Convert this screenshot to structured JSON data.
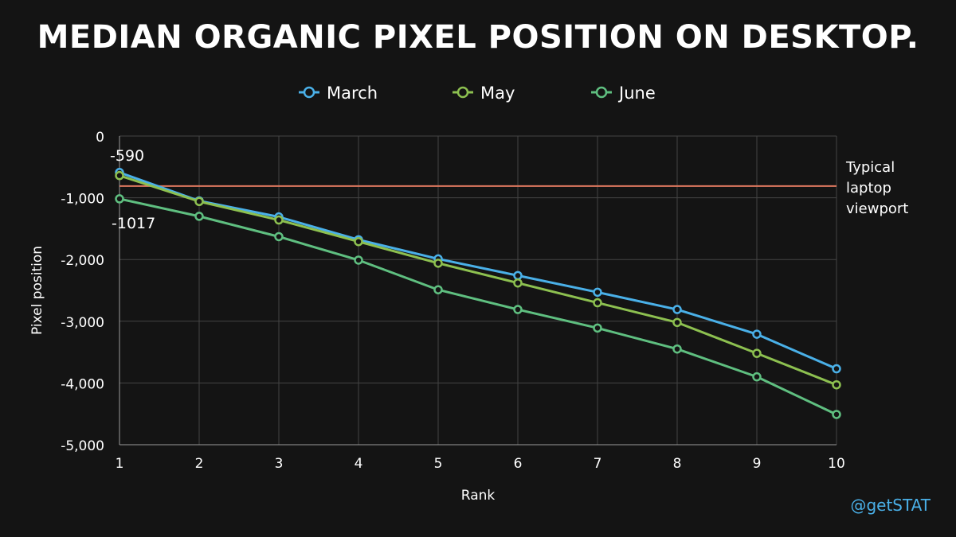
{
  "chart_data": {
    "type": "line",
    "title": "MEDIAN ORGANIC PIXEL POSITION ON DESKTOP.",
    "xlabel": "Rank",
    "ylabel": "Pixel position",
    "x": [
      1,
      2,
      3,
      4,
      5,
      6,
      7,
      8,
      9,
      10
    ],
    "ylim": [
      -5000,
      0
    ],
    "yticks": [
      0,
      -1000,
      -2000,
      -3000,
      -4000,
      -5000
    ],
    "ytick_labels": [
      "0",
      "-1,000",
      "-2,000",
      "-3,000",
      "-4,000",
      "-5,000"
    ],
    "grid": true,
    "legend_position": "top-center",
    "series": [
      {
        "name": "March",
        "color": "#4ab0e8",
        "values": [
          -590,
          -1050,
          -1310,
          -1680,
          -1990,
          -2260,
          -2530,
          -2810,
          -3210,
          -3770
        ]
      },
      {
        "name": "May",
        "color": "#8dc050",
        "values": [
          -640,
          -1060,
          -1360,
          -1710,
          -2060,
          -2380,
          -2700,
          -3020,
          -3520,
          -4030
        ]
      },
      {
        "name": "June",
        "color": "#5fbf80",
        "values": [
          -1017,
          -1300,
          -1630,
          -2010,
          -2490,
          -2810,
          -3110,
          -3450,
          -3900,
          -4510
        ]
      }
    ],
    "reference_line": {
      "value": -810,
      "color": "#e0795f",
      "label_lines": [
        "Typical",
        "laptop",
        "viewport"
      ]
    },
    "annotations": [
      {
        "text": "-590",
        "x": 1,
        "y": -590
      },
      {
        "text": "-1017",
        "x": 1,
        "y": -1017
      }
    ]
  },
  "watermark": "@getSTAT"
}
